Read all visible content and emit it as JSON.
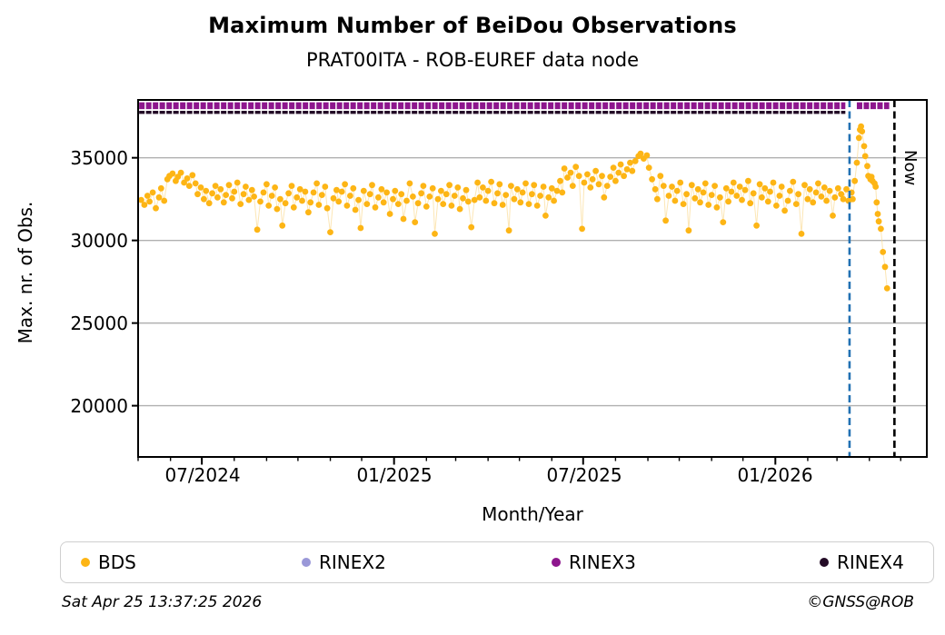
{
  "footer": {
    "timestamp": "Sat Apr 25 13:37:25 2026",
    "copyright": "©GNSS@ROB"
  },
  "chart_data": {
    "type": "scatter",
    "title": "Maximum Number of BeiDou Observations",
    "subtitle": "PRAT00ITA - ROB-EUREF data node",
    "xlabel": "Month/Year",
    "ylabel": "Max. nr. of Obs.",
    "now_label": "Now",
    "x_unit": "days since 2024-05-01",
    "xlim": [
      0,
      755
    ],
    "ylim": [
      16900,
      38500
    ],
    "grid": "horizontal-only",
    "legend_position": "bottom",
    "colors": {
      "bds": "#FDB515",
      "bds_line": "#FBD98E",
      "rinex2": "#9A98D8",
      "rinex3": "#8D168D",
      "rinex4": "#230B26",
      "lastfile_line": "#2271B3",
      "now_line": "#000000",
      "grid": "#B0B0B0"
    },
    "yticks": [
      {
        "v": 35000,
        "label": "35000"
      },
      {
        "v": 30000,
        "label": "30000"
      },
      {
        "v": 25000,
        "label": "25000"
      },
      {
        "v": 20000,
        "label": "20000"
      }
    ],
    "xticks": [
      {
        "d": 61,
        "label": "07/2024"
      },
      {
        "d": 245,
        "label": "01/2025"
      },
      {
        "d": 426,
        "label": "07/2025"
      },
      {
        "d": 610,
        "label": "01/2026"
      }
    ],
    "xticks_minor": [
      0,
      31,
      61,
      92,
      123,
      153,
      184,
      214,
      245,
      276,
      304,
      335,
      365,
      396,
      426,
      457,
      488,
      518,
      549,
      579,
      610,
      641,
      669,
      700,
      730
    ],
    "lastfile_day": 681,
    "now_day": 724,
    "rinex3_value": 38150,
    "rinex3_segments": [
      [
        1,
        677
      ],
      [
        688,
        719
      ]
    ],
    "rinex4_value": 37750,
    "rinex4_segments": [
      [
        1,
        677
      ]
    ],
    "legend": [
      {
        "label": "BDS",
        "color": "#FDB515"
      },
      {
        "label": "RINEX2",
        "color": "#9A98D8"
      },
      {
        "label": "RINEX3",
        "color": "#8D168D"
      },
      {
        "label": "RINEX4",
        "color": "#230B26"
      }
    ],
    "series_name": "BDS max observations per day",
    "points": [
      [
        3,
        32450
      ],
      [
        6,
        32150
      ],
      [
        9,
        32700
      ],
      [
        11,
        32350
      ],
      [
        14,
        32900
      ],
      [
        17,
        31950
      ],
      [
        20,
        32600
      ],
      [
        22,
        33150
      ],
      [
        25,
        32400
      ],
      [
        28,
        33700
      ],
      [
        30,
        33900
      ],
      [
        33,
        34050
      ],
      [
        36,
        33600
      ],
      [
        38,
        33850
      ],
      [
        41,
        34100
      ],
      [
        44,
        33500
      ],
      [
        47,
        33750
      ],
      [
        49,
        33300
      ],
      [
        52,
        33950
      ],
      [
        55,
        33450
      ],
      [
        57,
        32800
      ],
      [
        60,
        33200
      ],
      [
        63,
        32500
      ],
      [
        65,
        33000
      ],
      [
        68,
        32250
      ],
      [
        71,
        32850
      ],
      [
        74,
        33300
      ],
      [
        76,
        32600
      ],
      [
        79,
        33100
      ],
      [
        82,
        32300
      ],
      [
        84,
        32750
      ],
      [
        87,
        33350
      ],
      [
        90,
        32550
      ],
      [
        92,
        32950
      ],
      [
        95,
        33500
      ],
      [
        98,
        32200
      ],
      [
        101,
        32800
      ],
      [
        103,
        33250
      ],
      [
        106,
        32450
      ],
      [
        109,
        33050
      ],
      [
        111,
        32650
      ],
      [
        114,
        30650
      ],
      [
        117,
        32350
      ],
      [
        120,
        32900
      ],
      [
        123,
        33400
      ],
      [
        125,
        32100
      ],
      [
        128,
        32700
      ],
      [
        131,
        33200
      ],
      [
        133,
        31900
      ],
      [
        136,
        32500
      ],
      [
        138,
        30900
      ],
      [
        141,
        32250
      ],
      [
        144,
        32850
      ],
      [
        147,
        33300
      ],
      [
        149,
        32000
      ],
      [
        152,
        32600
      ],
      [
        155,
        33100
      ],
      [
        157,
        32400
      ],
      [
        160,
        32950
      ],
      [
        163,
        31700
      ],
      [
        165,
        32300
      ],
      [
        168,
        32900
      ],
      [
        171,
        33450
      ],
      [
        173,
        32150
      ],
      [
        176,
        32750
      ],
      [
        179,
        33250
      ],
      [
        181,
        31950
      ],
      [
        184,
        30500
      ],
      [
        187,
        32550
      ],
      [
        190,
        33050
      ],
      [
        192,
        32350
      ],
      [
        195,
        32950
      ],
      [
        198,
        33400
      ],
      [
        200,
        32100
      ],
      [
        203,
        32700
      ],
      [
        206,
        33150
      ],
      [
        208,
        31850
      ],
      [
        211,
        32450
      ],
      [
        213,
        30750
      ],
      [
        216,
        33000
      ],
      [
        219,
        32200
      ],
      [
        222,
        32800
      ],
      [
        224,
        33350
      ],
      [
        227,
        32000
      ],
      [
        230,
        32600
      ],
      [
        233,
        33100
      ],
      [
        235,
        32300
      ],
      [
        238,
        32900
      ],
      [
        241,
        31600
      ],
      [
        244,
        32500
      ],
      [
        246,
        33000
      ],
      [
        249,
        32200
      ],
      [
        252,
        32800
      ],
      [
        254,
        31300
      ],
      [
        257,
        32400
      ],
      [
        260,
        33450
      ],
      [
        263,
        32650
      ],
      [
        265,
        31100
      ],
      [
        268,
        32250
      ],
      [
        271,
        32850
      ],
      [
        273,
        33300
      ],
      [
        276,
        32050
      ],
      [
        279,
        32650
      ],
      [
        282,
        33150
      ],
      [
        284,
        30400
      ],
      [
        287,
        32500
      ],
      [
        290,
        33000
      ],
      [
        292,
        32200
      ],
      [
        295,
        32800
      ],
      [
        298,
        33350
      ],
      [
        300,
        32100
      ],
      [
        303,
        32700
      ],
      [
        306,
        33200
      ],
      [
        308,
        31900
      ],
      [
        311,
        32550
      ],
      [
        314,
        33050
      ],
      [
        316,
        32350
      ],
      [
        319,
        30800
      ],
      [
        322,
        32450
      ],
      [
        325,
        33500
      ],
      [
        327,
        32600
      ],
      [
        330,
        33200
      ],
      [
        333,
        32400
      ],
      [
        335,
        33000
      ],
      [
        338,
        33550
      ],
      [
        341,
        32250
      ],
      [
        344,
        32850
      ],
      [
        346,
        33400
      ],
      [
        349,
        32150
      ],
      [
        352,
        32750
      ],
      [
        355,
        30600
      ],
      [
        357,
        33300
      ],
      [
        360,
        32500
      ],
      [
        363,
        33100
      ],
      [
        366,
        32300
      ],
      [
        368,
        32900
      ],
      [
        371,
        33450
      ],
      [
        374,
        32200
      ],
      [
        377,
        32800
      ],
      [
        379,
        33350
      ],
      [
        382,
        32100
      ],
      [
        385,
        32700
      ],
      [
        388,
        33250
      ],
      [
        390,
        31500
      ],
      [
        393,
        32600
      ],
      [
        396,
        33150
      ],
      [
        398,
        32400
      ],
      [
        401,
        33000
      ],
      [
        404,
        33600
      ],
      [
        406,
        32900
      ],
      [
        408,
        34350
      ],
      [
        411,
        33800
      ],
      [
        414,
        34100
      ],
      [
        416,
        33300
      ],
      [
        419,
        34450
      ],
      [
        422,
        33900
      ],
      [
        425,
        30700
      ],
      [
        427,
        33500
      ],
      [
        430,
        34000
      ],
      [
        433,
        33200
      ],
      [
        435,
        33700
      ],
      [
        438,
        34200
      ],
      [
        441,
        33400
      ],
      [
        444,
        33900
      ],
      [
        446,
        32600
      ],
      [
        449,
        33300
      ],
      [
        452,
        33850
      ],
      [
        455,
        34400
      ],
      [
        457,
        33600
      ],
      [
        460,
        34100
      ],
      [
        462,
        34600
      ],
      [
        465,
        33900
      ],
      [
        468,
        34300
      ],
      [
        471,
        34700
      ],
      [
        473,
        34200
      ],
      [
        476,
        34800
      ],
      [
        479,
        35100
      ],
      [
        481,
        35250
      ],
      [
        484,
        34950
      ],
      [
        487,
        35150
      ],
      [
        489,
        34400
      ],
      [
        492,
        33700
      ],
      [
        495,
        33100
      ],
      [
        497,
        32500
      ],
      [
        500,
        33900
      ],
      [
        503,
        33300
      ],
      [
        505,
        31200
      ],
      [
        508,
        32700
      ],
      [
        511,
        33250
      ],
      [
        514,
        32400
      ],
      [
        516,
        33000
      ],
      [
        519,
        33500
      ],
      [
        522,
        32200
      ],
      [
        525,
        32800
      ],
      [
        527,
        30600
      ],
      [
        530,
        33350
      ],
      [
        533,
        32550
      ],
      [
        536,
        33100
      ],
      [
        538,
        32300
      ],
      [
        541,
        32900
      ],
      [
        543,
        33450
      ],
      [
        546,
        32150
      ],
      [
        549,
        32750
      ],
      [
        552,
        33300
      ],
      [
        554,
        32000
      ],
      [
        557,
        32600
      ],
      [
        560,
        31100
      ],
      [
        563,
        33150
      ],
      [
        565,
        32350
      ],
      [
        568,
        32950
      ],
      [
        570,
        33500
      ],
      [
        573,
        32700
      ],
      [
        576,
        33250
      ],
      [
        578,
        32450
      ],
      [
        581,
        33050
      ],
      [
        584,
        33600
      ],
      [
        586,
        32250
      ],
      [
        589,
        32850
      ],
      [
        592,
        30900
      ],
      [
        595,
        33400
      ],
      [
        597,
        32600
      ],
      [
        600,
        33150
      ],
      [
        603,
        32350
      ],
      [
        605,
        32950
      ],
      [
        608,
        33500
      ],
      [
        611,
        32100
      ],
      [
        614,
        32700
      ],
      [
        616,
        33250
      ],
      [
        619,
        31800
      ],
      [
        622,
        32400
      ],
      [
        624,
        33000
      ],
      [
        627,
        33550
      ],
      [
        630,
        32200
      ],
      [
        632,
        32800
      ],
      [
        635,
        30400
      ],
      [
        638,
        33350
      ],
      [
        641,
        32500
      ],
      [
        643,
        33100
      ],
      [
        646,
        32300
      ],
      [
        649,
        32900
      ],
      [
        651,
        33450
      ],
      [
        654,
        32650
      ],
      [
        657,
        33200
      ],
      [
        659,
        32400
      ],
      [
        662,
        33000
      ],
      [
        665,
        31500
      ],
      [
        667,
        32600
      ],
      [
        670,
        33150
      ],
      [
        673,
        32800
      ],
      [
        675,
        32500
      ],
      [
        678,
        33100
      ],
      [
        680,
        32400
      ],
      [
        683,
        32900
      ],
      [
        684,
        32500
      ],
      [
        686,
        33600
      ],
      [
        688,
        34700
      ],
      [
        690,
        36200
      ],
      [
        691,
        36700
      ],
      [
        692,
        36900
      ],
      [
        693,
        36600
      ],
      [
        695,
        35700
      ],
      [
        696,
        35100
      ],
      [
        698,
        34500
      ],
      [
        699,
        33900
      ],
      [
        701,
        33700
      ],
      [
        702,
        33850
      ],
      [
        703,
        33600
      ],
      [
        705,
        33450
      ],
      [
        706,
        33250
      ],
      [
        707,
        32300
      ],
      [
        708,
        31600
      ],
      [
        709,
        31150
      ],
      [
        711,
        30700
      ],
      [
        713,
        29300
      ],
      [
        715,
        28400
      ],
      [
        717,
        27100
      ]
    ]
  }
}
